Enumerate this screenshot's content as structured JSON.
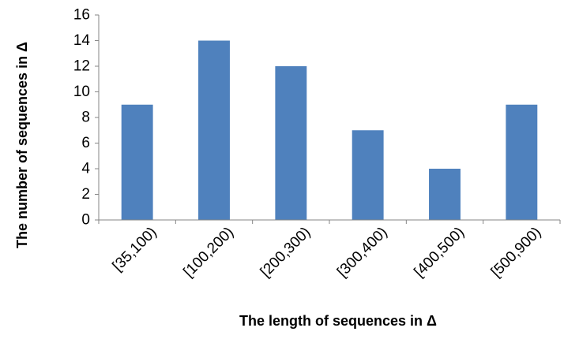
{
  "chart_data": {
    "type": "bar",
    "title": "",
    "xlabel": "The length of  sequences in Δ",
    "ylabel": "The number of sequences in Δ",
    "categories": [
      "[35,100)",
      "[100,200)",
      "[200,300)",
      "[300,400)",
      "[400,500)",
      "[500,900)"
    ],
    "values": [
      9,
      14,
      12,
      7,
      4,
      9
    ],
    "ylim": [
      0,
      16
    ],
    "yticks": [
      0,
      2,
      4,
      6,
      8,
      10,
      12,
      14,
      16
    ],
    "grid": false,
    "legend": "none",
    "bar_color": "#4F81BD"
  }
}
